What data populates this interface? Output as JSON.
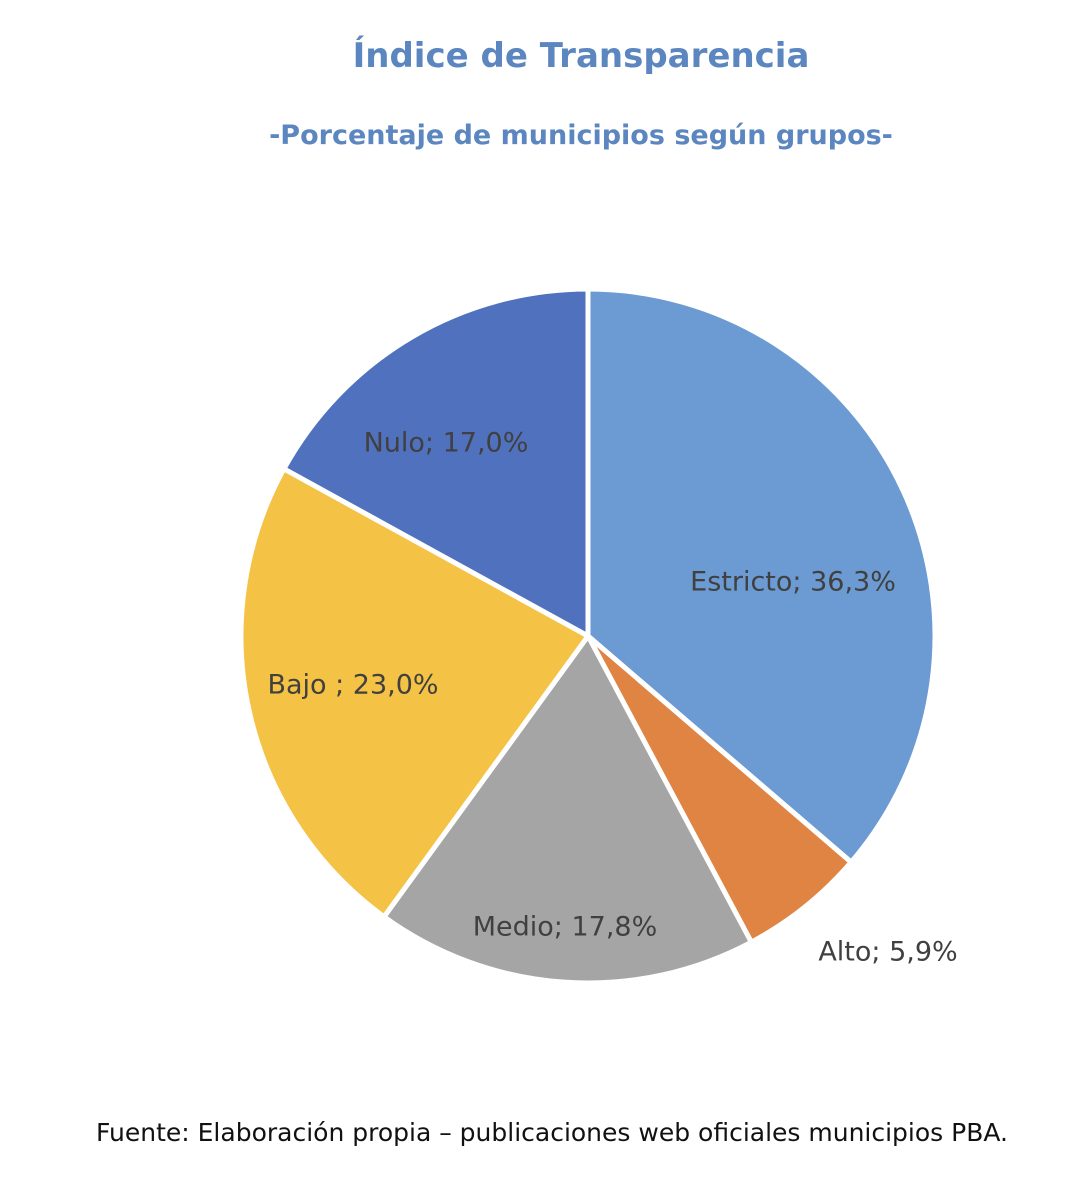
{
  "title": "Índice de Transparencia",
  "subtitle": "-Porcentaje de municipios según grupos-",
  "source": "Fuente: Elaboración propia – publicaciones web oficiales municipios PBA.",
  "chart_data": {
    "type": "pie",
    "title": "Índice de Transparencia",
    "subtitle": "-Porcentaje de municipios según grupos-",
    "start_angle": "12 o'clock",
    "direction": "clockwise",
    "slices": [
      {
        "label": "Estricto",
        "value": 36.3,
        "text": "Estricto; 36,3%",
        "color": "#6b9bd2"
      },
      {
        "label": "Alto",
        "value": 5.9,
        "text": "Alto; 5,9%",
        "color": "#e08443"
      },
      {
        "label": "Medio",
        "value": 17.8,
        "text": "Medio; 17,8%",
        "color": "#a5a5a5"
      },
      {
        "label": "Bajo",
        "value": 23.0,
        "text": "Bajo ; 23,0%",
        "color": "#f4c244"
      },
      {
        "label": "Nulo",
        "value": 17.0,
        "text": "Nulo; 17,0%",
        "color": "#5072be"
      }
    ],
    "legend": "none",
    "data_labels": "on slices"
  }
}
